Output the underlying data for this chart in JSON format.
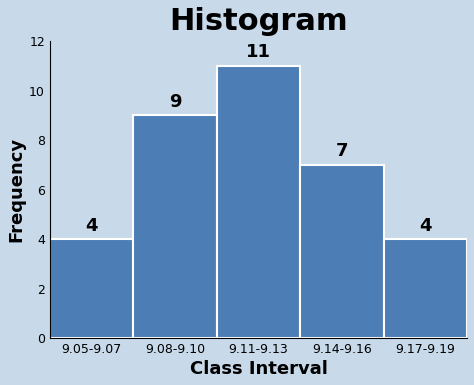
{
  "title": "Histogram",
  "xlabel": "Class Interval",
  "ylabel": "Frequency",
  "categories": [
    "9.05-9.07",
    "9.08-9.10",
    "9.11-9.13",
    "9.14-9.16",
    "9.17-9.19"
  ],
  "values": [
    4,
    9,
    11,
    7,
    4
  ],
  "bar_color": "#4d7db5",
  "bar_edge_color": "white",
  "ylim": [
    0,
    12
  ],
  "yticks": [
    0,
    2,
    4,
    6,
    8,
    10,
    12
  ],
  "background_color": "#c8daea",
  "title_fontsize": 22,
  "axis_label_fontsize": 13,
  "tick_fontsize": 9,
  "bar_label_fontsize": 13,
  "title_fontweight": "bold",
  "xlabel_fontweight": "bold",
  "ylabel_fontweight": "bold"
}
